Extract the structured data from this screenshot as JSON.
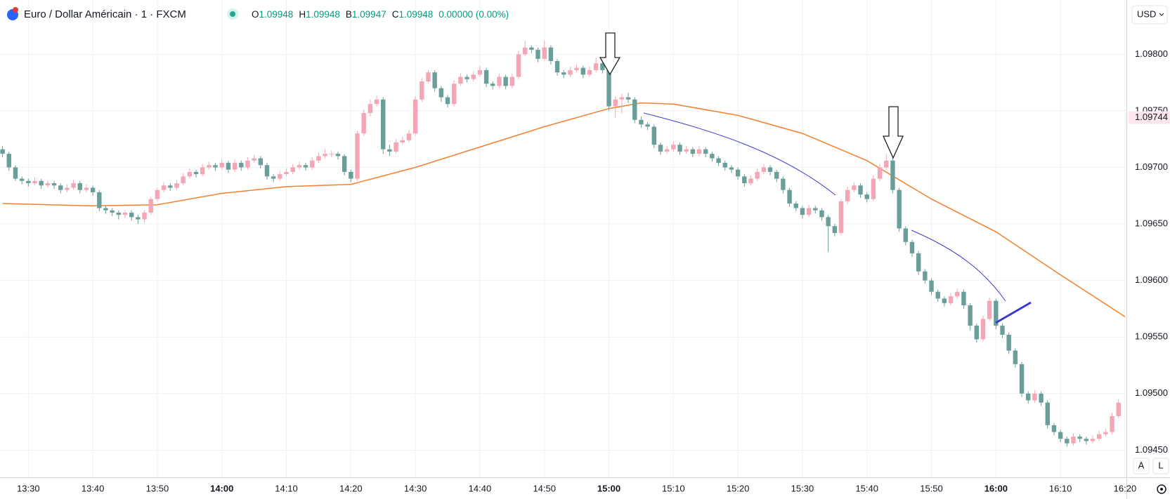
{
  "header": {
    "symbol": "Euro / Dollar Américain · 1 · FXCM",
    "legend": [
      {
        "label": "O",
        "value": "1.09948"
      },
      {
        "label": "H",
        "value": "1.09948"
      },
      {
        "label": "B",
        "value": "1.09947"
      },
      {
        "label": "C",
        "value": "1.09948"
      }
    ],
    "change": "0.00000 (0.00%)"
  },
  "price_axis": {
    "currency": "USD",
    "current_price": {
      "value": 1.09744,
      "label": "1.09744"
    }
  },
  "buttons": [
    "A",
    "L"
  ],
  "chart_data": {
    "type": "candlestick",
    "up_color": "#f4a6b6",
    "down_color": "#6a9e9a",
    "x": [
      "13:26",
      "13:27",
      "13:28",
      "13:29",
      "13:30",
      "13:31",
      "13:32",
      "13:33",
      "13:34",
      "13:35",
      "13:36",
      "13:37",
      "13:38",
      "13:39",
      "13:40",
      "13:41",
      "13:42",
      "13:43",
      "13:44",
      "13:45",
      "13:46",
      "13:47",
      "13:48",
      "13:49",
      "13:50",
      "13:51",
      "13:52",
      "13:53",
      "13:54",
      "13:55",
      "13:56",
      "13:57",
      "13:58",
      "13:59",
      "14:00",
      "14:01",
      "14:02",
      "14:03",
      "14:04",
      "14:05",
      "14:06",
      "14:07",
      "14:08",
      "14:09",
      "14:10",
      "14:11",
      "14:12",
      "14:13",
      "14:14",
      "14:15",
      "14:16",
      "14:17",
      "14:18",
      "14:19",
      "14:20",
      "14:21",
      "14:22",
      "14:23",
      "14:24",
      "14:25",
      "14:26",
      "14:27",
      "14:28",
      "14:29",
      "14:30",
      "14:31",
      "14:32",
      "14:33",
      "14:34",
      "14:35",
      "14:36",
      "14:37",
      "14:38",
      "14:39",
      "14:40",
      "14:41",
      "14:42",
      "14:43",
      "14:44",
      "14:45",
      "14:46",
      "14:47",
      "14:48",
      "14:49",
      "14:50",
      "14:51",
      "14:52",
      "14:53",
      "14:54",
      "14:55",
      "14:56",
      "14:57",
      "14:58",
      "14:59",
      "15:00",
      "15:01",
      "15:02",
      "15:03",
      "15:04",
      "15:05",
      "15:06",
      "15:07",
      "15:08",
      "15:09",
      "15:10",
      "15:11",
      "15:12",
      "15:13",
      "15:14",
      "15:15",
      "15:16",
      "15:17",
      "15:18",
      "15:19",
      "15:20",
      "15:21",
      "15:22",
      "15:23",
      "15:24",
      "15:25",
      "15:26",
      "15:27",
      "15:28",
      "15:29",
      "15:30",
      "15:31",
      "15:32",
      "15:33",
      "15:34",
      "15:35",
      "15:36",
      "15:37",
      "15:38",
      "15:39",
      "15:40",
      "15:41",
      "15:42",
      "15:43",
      "15:44",
      "15:45",
      "15:46",
      "15:47",
      "15:48",
      "15:49",
      "15:50",
      "15:51",
      "15:52",
      "15:53",
      "15:54",
      "15:55",
      "15:56",
      "15:57",
      "15:58",
      "15:59",
      "16:00",
      "16:01",
      "16:02",
      "16:03",
      "16:04",
      "16:05",
      "16:06",
      "16:07",
      "16:08",
      "16:09",
      "16:10",
      "16:11",
      "16:12",
      "16:13",
      "16:14",
      "16:15",
      "16:16",
      "16:17",
      "16:18",
      "16:19"
    ],
    "open": [
      1.09716,
      1.09712,
      1.097,
      1.0969,
      1.09688,
      1.09686,
      1.09688,
      1.09684,
      1.09686,
      1.09684,
      1.0968,
      1.09682,
      1.09686,
      1.0968,
      1.09682,
      1.09678,
      1.09664,
      1.09662,
      1.0966,
      1.09658,
      1.0966,
      1.09656,
      1.09654,
      1.0966,
      1.09672,
      1.0968,
      1.09684,
      1.09682,
      1.09686,
      1.09692,
      1.09696,
      1.09694,
      1.097,
      1.09702,
      1.097,
      1.09704,
      1.09698,
      1.09704,
      1.097,
      1.09706,
      1.09708,
      1.09702,
      1.09692,
      1.0969,
      1.09694,
      1.09696,
      1.097,
      1.09702,
      1.097,
      1.09706,
      1.0971,
      1.09712,
      1.09712,
      1.0971,
      1.09696,
      1.0969,
      1.0973,
      1.09748,
      1.09756,
      1.0976,
      1.09716,
      1.09714,
      1.09722,
      1.09724,
      1.0973,
      1.0976,
      1.09776,
      1.09784,
      1.0977,
      1.09762,
      1.09756,
      1.09774,
      1.0978,
      1.09778,
      1.09782,
      1.09786,
      1.09774,
      1.09772,
      1.0978,
      1.09772,
      1.0978,
      1.098,
      1.09806,
      1.09804,
      1.09796,
      1.09806,
      1.09794,
      1.09784,
      1.09782,
      1.09786,
      1.09788,
      1.09782,
      1.09786,
      1.09792,
      1.09786,
      1.09754,
      1.0976,
      1.09762,
      1.0976,
      1.09742,
      1.09738,
      1.09736,
      1.0972,
      1.09714,
      1.09716,
      1.0972,
      1.09714,
      1.09716,
      1.09712,
      1.09716,
      1.09712,
      1.09708,
      1.09704,
      1.097,
      1.09698,
      1.09692,
      1.09686,
      1.0969,
      1.09696,
      1.097,
      1.09696,
      1.0969,
      1.0968,
      1.09668,
      1.09664,
      1.09658,
      1.09664,
      1.09662,
      1.09656,
      1.09648,
      1.09642,
      1.0967,
      1.0968,
      1.09684,
      1.09676,
      1.09672,
      1.0969,
      1.097,
      1.09706,
      1.0968,
      1.09646,
      1.09634,
      1.09624,
      1.09608,
      1.096,
      1.0959,
      1.09584,
      1.0958,
      1.09586,
      1.0959,
      1.09578,
      1.0956,
      1.09548,
      1.09566,
      1.09582,
      1.0956,
      1.09552,
      1.09538,
      1.09526,
      1.095,
      1.09494,
      1.095,
      1.09492,
      1.09472,
      1.09466,
      1.0946,
      1.09456,
      1.09462,
      1.0946,
      1.09458,
      1.0946,
      1.09464,
      1.09466,
      1.0948
    ],
    "high": [
      1.09719,
      1.09714,
      1.09702,
      1.09692,
      1.0969,
      1.09691,
      1.0969,
      1.09688,
      1.09688,
      1.09686,
      1.09685,
      1.09689,
      1.09688,
      1.09685,
      1.09684,
      1.0968,
      1.09666,
      1.09664,
      1.09662,
      1.09662,
      1.09662,
      1.09658,
      1.09662,
      1.09674,
      1.09682,
      1.09687,
      1.09686,
      1.09689,
      1.09695,
      1.09699,
      1.09698,
      1.09703,
      1.09705,
      1.09704,
      1.09707,
      1.09706,
      1.09707,
      1.09706,
      1.09709,
      1.09711,
      1.0971,
      1.09704,
      1.09694,
      1.09697,
      1.09699,
      1.09703,
      1.09705,
      1.09704,
      1.09709,
      1.09713,
      1.09716,
      1.09715,
      1.09714,
      1.09712,
      1.09698,
      1.09732,
      1.09751,
      1.0976,
      1.09764,
      1.09762,
      1.0972,
      1.09725,
      1.09727,
      1.09733,
      1.09763,
      1.09779,
      1.09786,
      1.09786,
      1.09772,
      1.09764,
      1.09777,
      1.09783,
      1.09782,
      1.09785,
      1.0979,
      1.09788,
      1.09776,
      1.09783,
      1.09782,
      1.09783,
      1.09803,
      1.09812,
      1.09808,
      1.09806,
      1.09812,
      1.09808,
      1.09796,
      1.09786,
      1.09789,
      1.09791,
      1.0979,
      1.09789,
      1.09797,
      1.09794,
      1.09788,
      1.09763,
      1.09765,
      1.09766,
      1.09762,
      1.09745,
      1.0974,
      1.09738,
      1.09722,
      1.09719,
      1.09723,
      1.09722,
      1.09719,
      1.09718,
      1.09719,
      1.09718,
      1.09714,
      1.0971,
      1.09706,
      1.09702,
      1.097,
      1.09694,
      1.09693,
      1.09699,
      1.09703,
      1.09702,
      1.09698,
      1.09692,
      1.09682,
      1.0967,
      1.09666,
      1.09667,
      1.09666,
      1.09664,
      1.09658,
      1.0965,
      1.09672,
      1.09683,
      1.09687,
      1.09686,
      1.09678,
      1.09693,
      1.09703,
      1.09712,
      1.09708,
      1.09682,
      1.09648,
      1.09636,
      1.09626,
      1.0961,
      1.09602,
      1.09592,
      1.09586,
      1.09589,
      1.09593,
      1.09592,
      1.0958,
      1.09562,
      1.09569,
      1.09585,
      1.09584,
      1.09562,
      1.09554,
      1.0954,
      1.09528,
      1.09502,
      1.09503,
      1.09502,
      1.09494,
      1.09474,
      1.09468,
      1.09462,
      1.09465,
      1.09464,
      1.09462,
      1.09463,
      1.09467,
      1.09469,
      1.09483,
      1.09495
    ],
    "low": [
      1.09709,
      1.09697,
      1.09688,
      1.09685,
      1.09683,
      1.09684,
      1.09681,
      1.09682,
      1.09681,
      1.09677,
      1.09678,
      1.0968,
      1.09677,
      1.09678,
      1.09675,
      1.09661,
      1.09659,
      1.09657,
      1.09654,
      1.09655,
      1.09653,
      1.0965,
      1.09651,
      1.09658,
      1.0967,
      1.09678,
      1.09679,
      1.0968,
      1.09684,
      1.0969,
      1.09691,
      1.09692,
      1.09698,
      1.09697,
      1.09698,
      1.09695,
      1.09696,
      1.09697,
      1.09698,
      1.09704,
      1.09699,
      1.09689,
      1.09687,
      1.09688,
      1.09692,
      1.09694,
      1.09698,
      1.09697,
      1.09698,
      1.09704,
      1.09708,
      1.09709,
      1.09707,
      1.09693,
      1.09687,
      1.09688,
      1.09728,
      1.09745,
      1.09754,
      1.09712,
      1.0971,
      1.09712,
      1.0972,
      1.09722,
      1.09728,
      1.09758,
      1.09774,
      1.09767,
      1.09758,
      1.09753,
      1.09754,
      1.09772,
      1.09775,
      1.09776,
      1.0978,
      1.09771,
      1.09769,
      1.0977,
      1.09769,
      1.0977,
      1.09778,
      1.09798,
      1.09801,
      1.09793,
      1.09794,
      1.09791,
      1.09781,
      1.09779,
      1.0978,
      1.09784,
      1.09779,
      1.0978,
      1.09784,
      1.09783,
      1.0975,
      1.09744,
      1.09748,
      1.09757,
      1.09739,
      1.09735,
      1.09733,
      1.09717,
      1.09711,
      1.09712,
      1.09714,
      1.09711,
      1.09712,
      1.09709,
      1.0971,
      1.09709,
      1.09705,
      1.09701,
      1.09697,
      1.09695,
      1.09689,
      1.09683,
      1.09684,
      1.09688,
      1.09694,
      1.09693,
      1.09687,
      1.09677,
      1.09665,
      1.09661,
      1.09655,
      1.09656,
      1.09659,
      1.09653,
      1.09625,
      1.09639,
      1.0964,
      1.09668,
      1.09678,
      1.09673,
      1.09669,
      1.0967,
      1.09688,
      1.09698,
      1.09677,
      1.09643,
      1.09631,
      1.09621,
      1.09605,
      1.09597,
      1.09587,
      1.09581,
      1.09577,
      1.09578,
      1.09584,
      1.09575,
      1.09556,
      1.09545,
      1.09546,
      1.09564,
      1.09557,
      1.09549,
      1.09535,
      1.09523,
      1.09497,
      1.09491,
      1.09492,
      1.09489,
      1.09469,
      1.09463,
      1.09457,
      1.09453,
      1.09454,
      1.09457,
      1.09455,
      1.09456,
      1.09458,
      1.09462,
      1.09464,
      1.09478
    ],
    "close": [
      1.09712,
      1.097,
      1.0969,
      1.09688,
      1.09686,
      1.09688,
      1.09684,
      1.09686,
      1.09684,
      1.0968,
      1.09682,
      1.09686,
      1.0968,
      1.09682,
      1.09678,
      1.09664,
      1.09662,
      1.0966,
      1.09658,
      1.0966,
      1.09656,
      1.09654,
      1.0966,
      1.09672,
      1.0968,
      1.09684,
      1.09682,
      1.09686,
      1.09692,
      1.09696,
      1.09694,
      1.097,
      1.09702,
      1.097,
      1.09704,
      1.09698,
      1.09704,
      1.097,
      1.09706,
      1.09708,
      1.09702,
      1.09692,
      1.0969,
      1.09694,
      1.09696,
      1.097,
      1.09702,
      1.097,
      1.09706,
      1.0971,
      1.09712,
      1.09712,
      1.0971,
      1.09696,
      1.0969,
      1.0973,
      1.09748,
      1.09756,
      1.0976,
      1.09716,
      1.09714,
      1.09722,
      1.09724,
      1.0973,
      1.0976,
      1.09776,
      1.09784,
      1.0977,
      1.09762,
      1.09756,
      1.09774,
      1.0978,
      1.09778,
      1.09782,
      1.09786,
      1.09774,
      1.09772,
      1.0978,
      1.09772,
      1.0978,
      1.098,
      1.09806,
      1.09804,
      1.09796,
      1.09806,
      1.09794,
      1.09784,
      1.09782,
      1.09786,
      1.09788,
      1.09782,
      1.09786,
      1.09792,
      1.09786,
      1.09754,
      1.0976,
      1.09762,
      1.0976,
      1.09742,
      1.09738,
      1.09736,
      1.0972,
      1.09714,
      1.09716,
      1.0972,
      1.09714,
      1.09716,
      1.09712,
      1.09716,
      1.09712,
      1.09708,
      1.09704,
      1.097,
      1.09698,
      1.09692,
      1.09686,
      1.0969,
      1.09696,
      1.097,
      1.09696,
      1.0969,
      1.0968,
      1.09668,
      1.09664,
      1.09658,
      1.09664,
      1.09662,
      1.09656,
      1.09648,
      1.09642,
      1.0967,
      1.0968,
      1.09684,
      1.09676,
      1.09672,
      1.0969,
      1.097,
      1.09706,
      1.0968,
      1.09646,
      1.09634,
      1.09624,
      1.09608,
      1.096,
      1.0959,
      1.09584,
      1.0958,
      1.09586,
      1.0959,
      1.09578,
      1.0956,
      1.09548,
      1.09566,
      1.09582,
      1.0956,
      1.09552,
      1.09538,
      1.09526,
      1.095,
      1.09494,
      1.095,
      1.09492,
      1.09472,
      1.09466,
      1.0946,
      1.09456,
      1.09462,
      1.0946,
      1.09458,
      1.0946,
      1.09464,
      1.09466,
      1.0948,
      1.09492
    ],
    "ma_line": {
      "color": "#f57f2c",
      "x": [
        "13:26",
        "13:40",
        "13:50",
        "14:00",
        "14:10",
        "14:20",
        "14:30",
        "14:40",
        "14:50",
        "15:00",
        "15:05",
        "15:10",
        "15:20",
        "15:30",
        "15:40",
        "15:50",
        "16:00",
        "16:10",
        "16:20"
      ],
      "values": [
        1.09668,
        1.09666,
        1.09667,
        1.09677,
        1.09683,
        1.09685,
        1.097,
        1.09718,
        1.09736,
        1.09752,
        1.09757,
        1.09756,
        1.09746,
        1.0973,
        1.09706,
        1.09672,
        1.09643,
        1.09605,
        1.09568
      ]
    },
    "ylim": [
      1.09426,
      1.09848
    ],
    "yticks": [
      {
        "value": 1.098,
        "label": "1.09800"
      },
      {
        "value": 1.0975,
        "label": "1.09750"
      },
      {
        "value": 1.097,
        "label": "1.09700"
      },
      {
        "value": 1.0965,
        "label": "1.09650"
      },
      {
        "value": 1.096,
        "label": "1.09600"
      },
      {
        "value": 1.0955,
        "label": "1.09550"
      },
      {
        "value": 1.095,
        "label": "1.09500"
      },
      {
        "value": 1.0945,
        "label": "1.09450"
      }
    ],
    "xticks": [
      "13:30",
      "13:40",
      "13:50",
      "14:00",
      "14:10",
      "14:20",
      "14:30",
      "14:40",
      "14:50",
      "15:00",
      "15:10",
      "15:20",
      "15:30",
      "15:40",
      "15:50",
      "16:00",
      "16:10",
      "16:20"
    ],
    "grid": true
  }
}
